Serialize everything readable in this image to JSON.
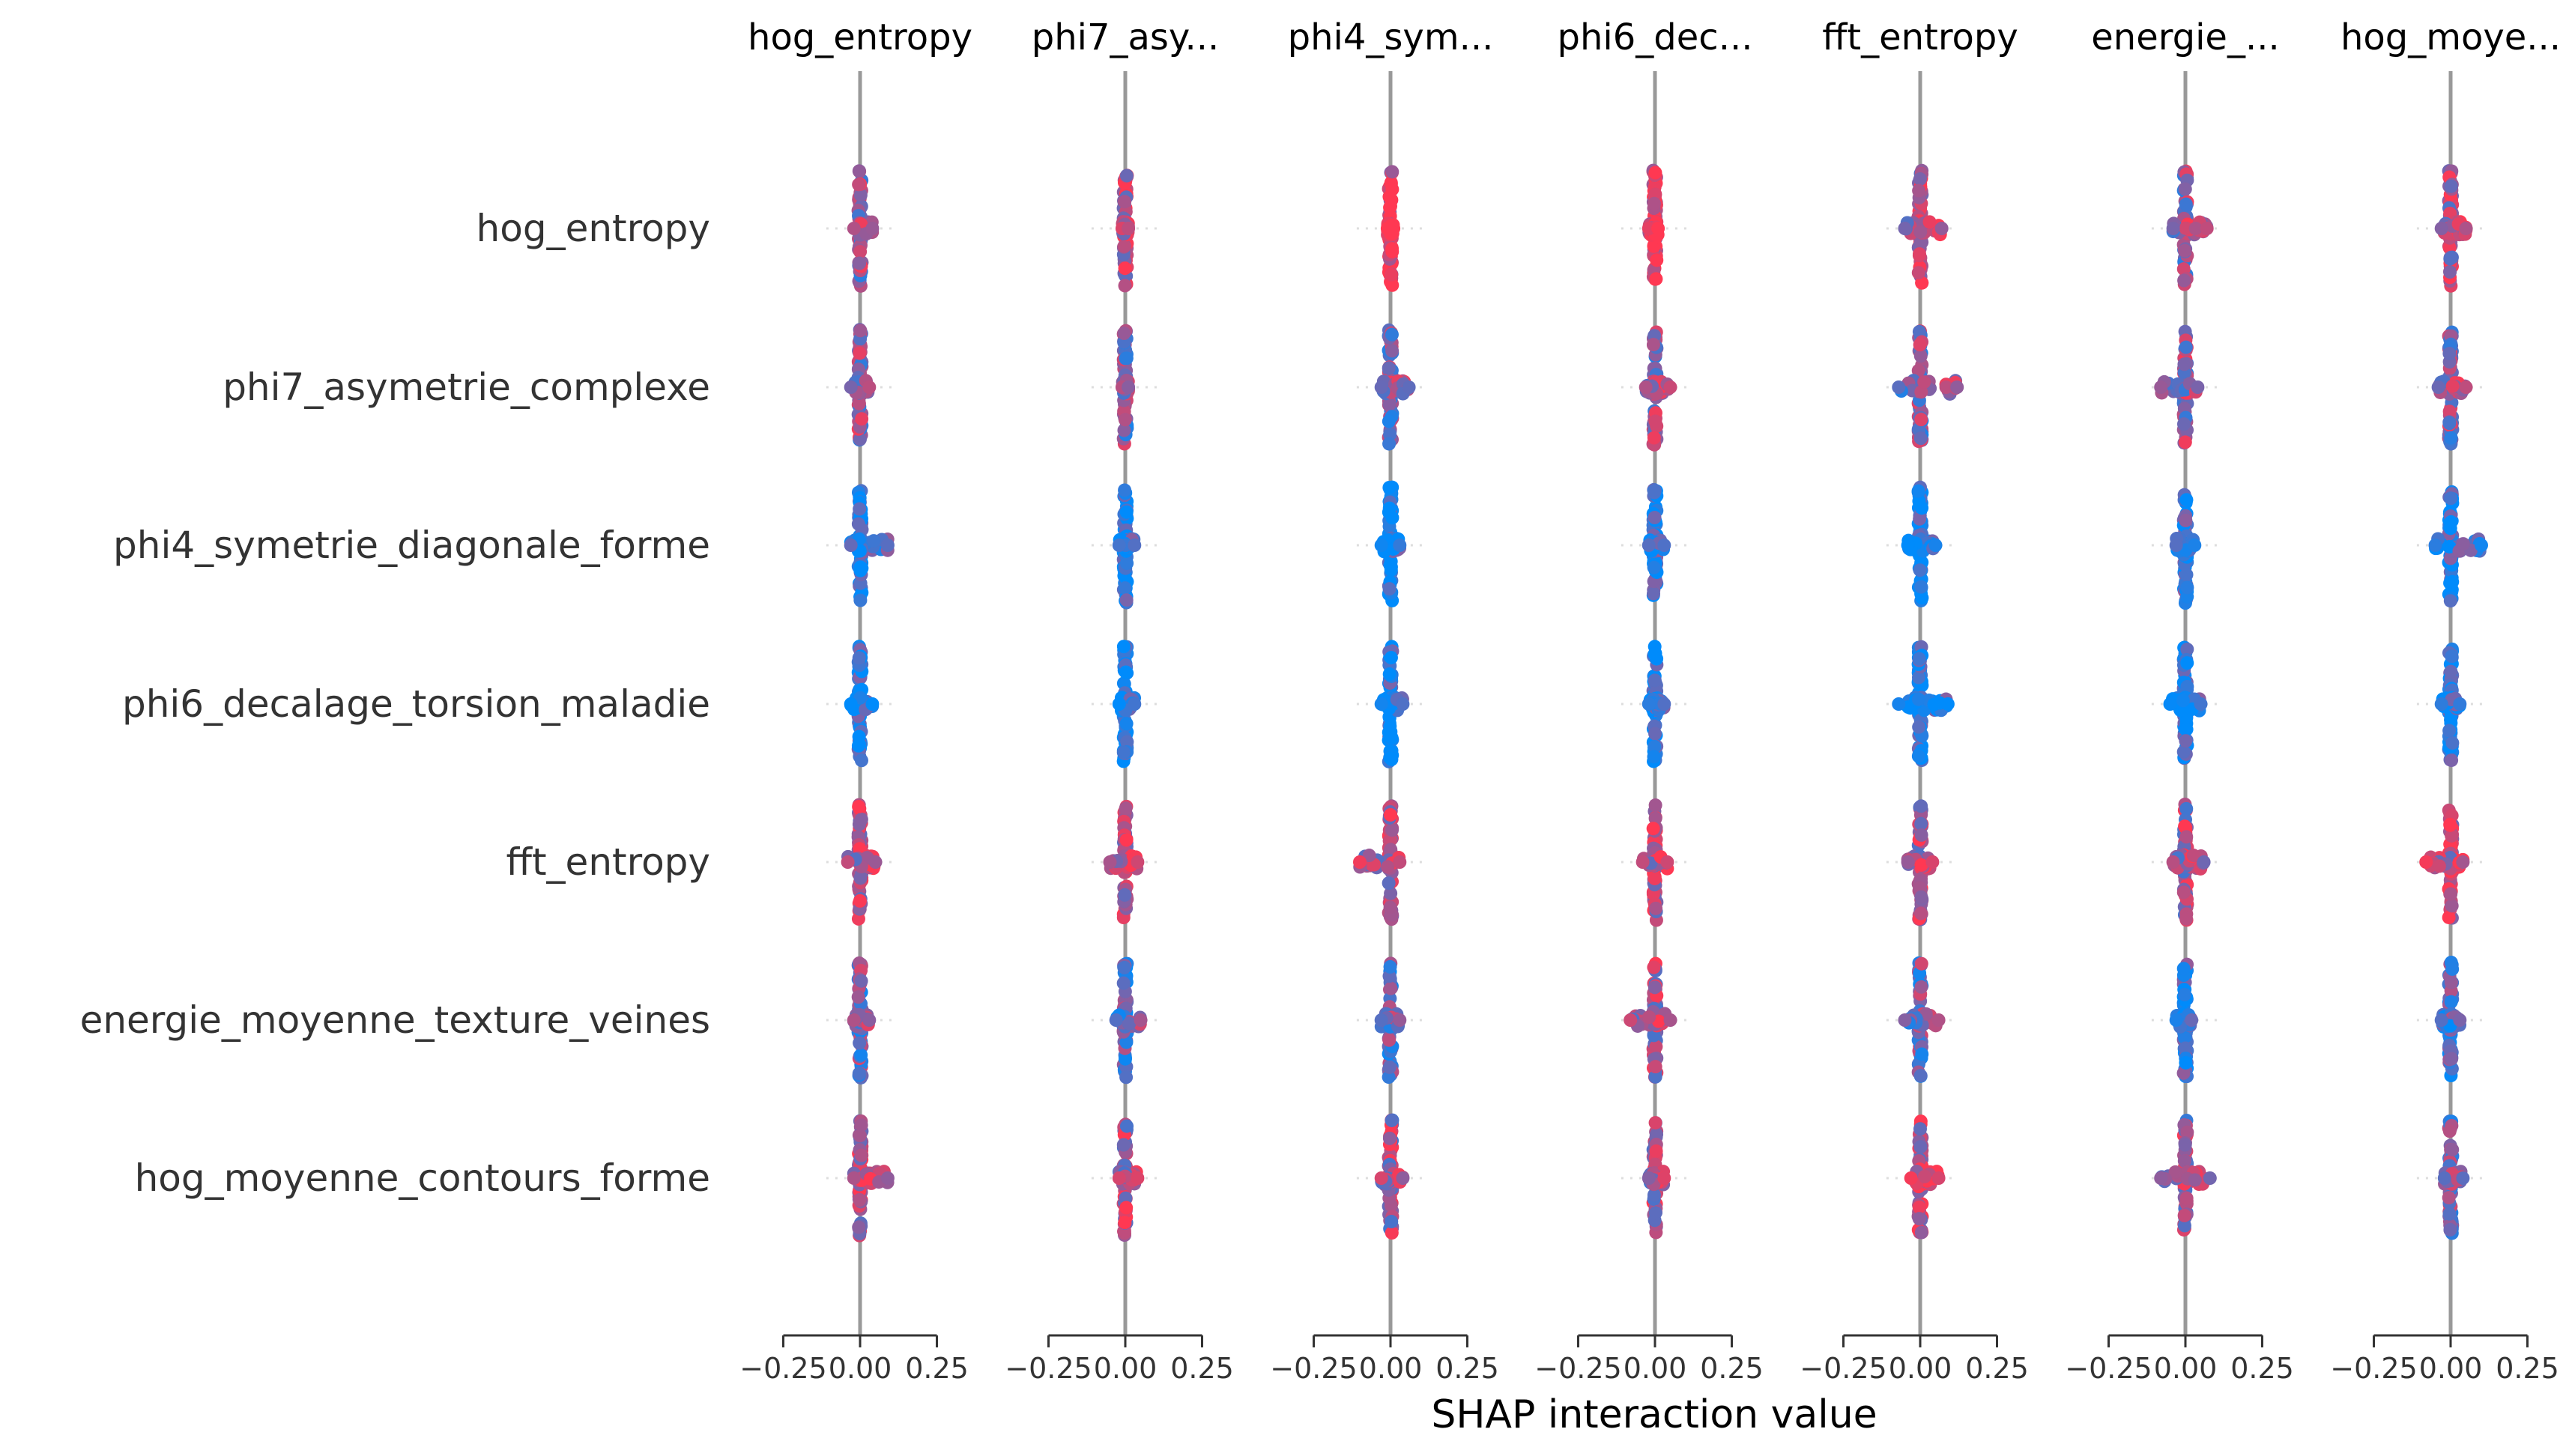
{
  "chart_data": {
    "type": "scatter",
    "xlabel": "SHAP interaction value",
    "xticks": [
      -0.25,
      0.0,
      0.25
    ],
    "xtick_labels": [
      "−0.25",
      "0.00",
      "0.25"
    ],
    "xlim": [
      -0.25,
      0.25
    ],
    "features": [
      "hog_entropy",
      "phi7_asymetrie_complexe",
      "phi4_symetrie_diagonale_forme",
      "phi6_decalage_torsion_maladie",
      "fft_entropy",
      "energie_moyenne_texture_veines",
      "hog_moyenne_contours_forme"
    ],
    "column_titles": [
      "hog_entropy",
      "phi7_asy...",
      "phi4_sym...",
      "phi6_dec...",
      "fft_entropy",
      "energie_...",
      "hog_moye..."
    ],
    "colors": {
      "low": "#008bfb",
      "high": "#ff0052",
      "zero_line": "#999999",
      "grid": "#dddddd"
    },
    "spread": [
      [
        [
          -0.02,
          0.04
        ],
        [
          -0.01,
          0.01
        ],
        [
          -0.01,
          0.01
        ],
        [
          -0.02,
          0.01
        ],
        [
          -0.05,
          0.07
        ],
        [
          -0.04,
          0.07
        ],
        [
          -0.03,
          0.05
        ]
      ],
      [
        [
          -0.03,
          0.03
        ],
        [
          -0.01,
          0.01
        ],
        [
          -0.03,
          0.06
        ],
        [
          -0.03,
          0.05
        ],
        [
          -0.07,
          0.12
        ],
        [
          -0.08,
          0.04
        ],
        [
          -0.04,
          0.05
        ]
      ],
      [
        [
          -0.03,
          0.09
        ],
        [
          -0.02,
          0.03
        ],
        [
          -0.03,
          0.03
        ],
        [
          -0.02,
          0.03
        ],
        [
          -0.04,
          0.05
        ],
        [
          -0.03,
          0.03
        ],
        [
          -0.05,
          0.1
        ]
      ],
      [
        [
          -0.03,
          0.04
        ],
        [
          -0.02,
          0.03
        ],
        [
          -0.03,
          0.04
        ],
        [
          -0.02,
          0.03
        ],
        [
          -0.07,
          0.09
        ],
        [
          -0.05,
          0.05
        ],
        [
          -0.03,
          0.03
        ]
      ],
      [
        [
          -0.04,
          0.05
        ],
        [
          -0.05,
          0.04
        ],
        [
          -0.1,
          0.03
        ],
        [
          -0.04,
          0.04
        ],
        [
          -0.04,
          0.04
        ],
        [
          -0.04,
          0.06
        ],
        [
          -0.08,
          0.04
        ]
      ],
      [
        [
          -0.02,
          0.03
        ],
        [
          -0.03,
          0.05
        ],
        [
          -0.03,
          0.03
        ],
        [
          -0.08,
          0.05
        ],
        [
          -0.05,
          0.06
        ],
        [
          -0.03,
          0.02
        ],
        [
          -0.03,
          0.03
        ]
      ],
      [
        [
          -0.02,
          0.09
        ],
        [
          -0.02,
          0.04
        ],
        [
          -0.03,
          0.04
        ],
        [
          -0.02,
          0.03
        ],
        [
          -0.03,
          0.06
        ],
        [
          -0.08,
          0.08
        ],
        [
          -0.02,
          0.04
        ]
      ]
    ],
    "color_mix": [
      [
        0.55,
        0.75,
        0.9,
        0.95,
        0.7,
        0.55,
        0.7
      ],
      [
        0.55,
        0.5,
        0.5,
        0.55,
        0.5,
        0.6,
        0.55
      ],
      [
        0.15,
        0.1,
        0.1,
        0.15,
        0.1,
        0.2,
        0.15
      ],
      [
        0.1,
        0.08,
        0.1,
        0.1,
        0.08,
        0.1,
        0.1
      ],
      [
        0.75,
        0.75,
        0.75,
        0.7,
        0.7,
        0.65,
        0.8
      ],
      [
        0.45,
        0.4,
        0.4,
        0.65,
        0.45,
        0.2,
        0.35
      ],
      [
        0.7,
        0.65,
        0.65,
        0.65,
        0.75,
        0.6,
        0.5
      ]
    ]
  }
}
